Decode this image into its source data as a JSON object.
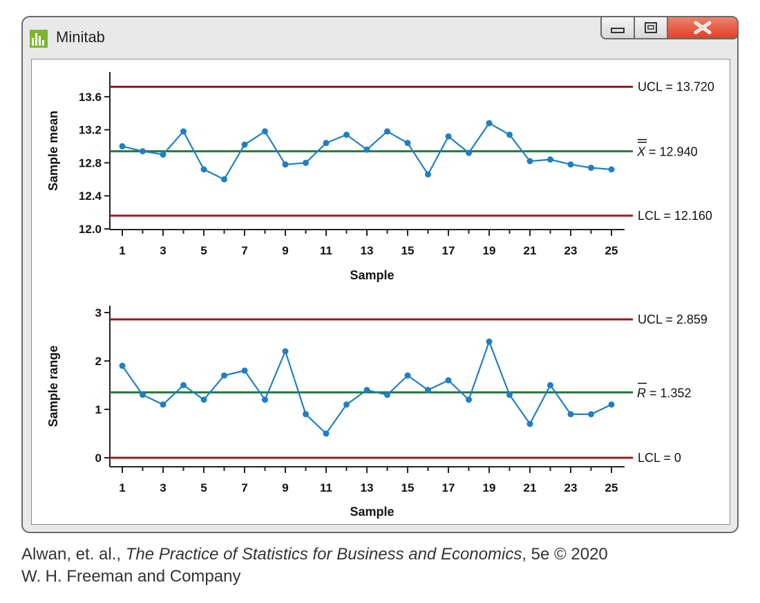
{
  "window": {
    "title": "Minitab",
    "icon": "minitab-bar-chart-icon"
  },
  "controls": {
    "minimize": "minimize-icon",
    "restore": "restore-icon",
    "close": "close-icon"
  },
  "colors": {
    "series": "#1f7fc3",
    "center_line": "#1f7a3a",
    "control_limit": "#9b1a1a"
  },
  "credit": {
    "line1_prefix": "Alwan, et. al., ",
    "line1_title": "The Practice of Statistics for Business and Economics",
    "line1_suffix": ", 5e © 2020",
    "line2": "W. H. Freeman and Company"
  },
  "chart_data": [
    {
      "type": "line",
      "title": "",
      "xlabel": "Sample",
      "ylabel": "Sample mean",
      "ylim": [
        12.0,
        13.8
      ],
      "yticks": [
        "12.0",
        "12.4",
        "12.8",
        "13.2",
        "13.6"
      ],
      "xticks": [
        "1",
        "3",
        "5",
        "7",
        "9",
        "11",
        "13",
        "15",
        "17",
        "19",
        "21",
        "23",
        "25"
      ],
      "x": [
        1,
        2,
        3,
        4,
        5,
        6,
        7,
        8,
        9,
        10,
        11,
        12,
        13,
        14,
        15,
        16,
        17,
        18,
        19,
        20,
        21,
        22,
        23,
        24,
        25
      ],
      "values": [
        13.0,
        12.94,
        12.9,
        13.18,
        12.72,
        12.6,
        13.02,
        13.18,
        12.78,
        12.8,
        13.04,
        13.14,
        12.96,
        13.18,
        13.04,
        12.66,
        13.12,
        12.92,
        13.28,
        13.14,
        12.82,
        12.84,
        12.78,
        12.74,
        12.72
      ],
      "lines": [
        {
          "kind": "ucl",
          "value": 13.72,
          "label": "UCL = 13.720"
        },
        {
          "kind": "center",
          "value": 12.94,
          "label": "X = 12.940",
          "symbol": "X",
          "label_value": "12.940"
        },
        {
          "kind": "lcl",
          "value": 12.16,
          "label": "LCL = 12.160"
        }
      ]
    },
    {
      "type": "line",
      "title": "",
      "xlabel": "Sample",
      "ylabel": "Sample range",
      "ylim": [
        0,
        3
      ],
      "yticks": [
        "0",
        "1",
        "2",
        "3"
      ],
      "xticks": [
        "1",
        "3",
        "5",
        "7",
        "9",
        "11",
        "13",
        "15",
        "17",
        "19",
        "21",
        "23",
        "25"
      ],
      "x": [
        1,
        2,
        3,
        4,
        5,
        6,
        7,
        8,
        9,
        10,
        11,
        12,
        13,
        14,
        15,
        16,
        17,
        18,
        19,
        20,
        21,
        22,
        23,
        24,
        25
      ],
      "values": [
        1.9,
        1.3,
        1.1,
        1.5,
        1.2,
        1.7,
        1.8,
        1.2,
        2.2,
        0.9,
        0.5,
        1.1,
        1.4,
        1.3,
        1.7,
        1.4,
        1.6,
        1.2,
        2.4,
        1.3,
        0.7,
        1.5,
        0.9,
        0.9,
        1.1
      ],
      "lines": [
        {
          "kind": "ucl",
          "value": 2.859,
          "label": "UCL = 2.859"
        },
        {
          "kind": "center",
          "value": 1.352,
          "label": "R = 1.352",
          "symbol": "R",
          "label_value": "1.352"
        },
        {
          "kind": "lcl",
          "value": 0,
          "label": "LCL = 0"
        }
      ]
    }
  ]
}
